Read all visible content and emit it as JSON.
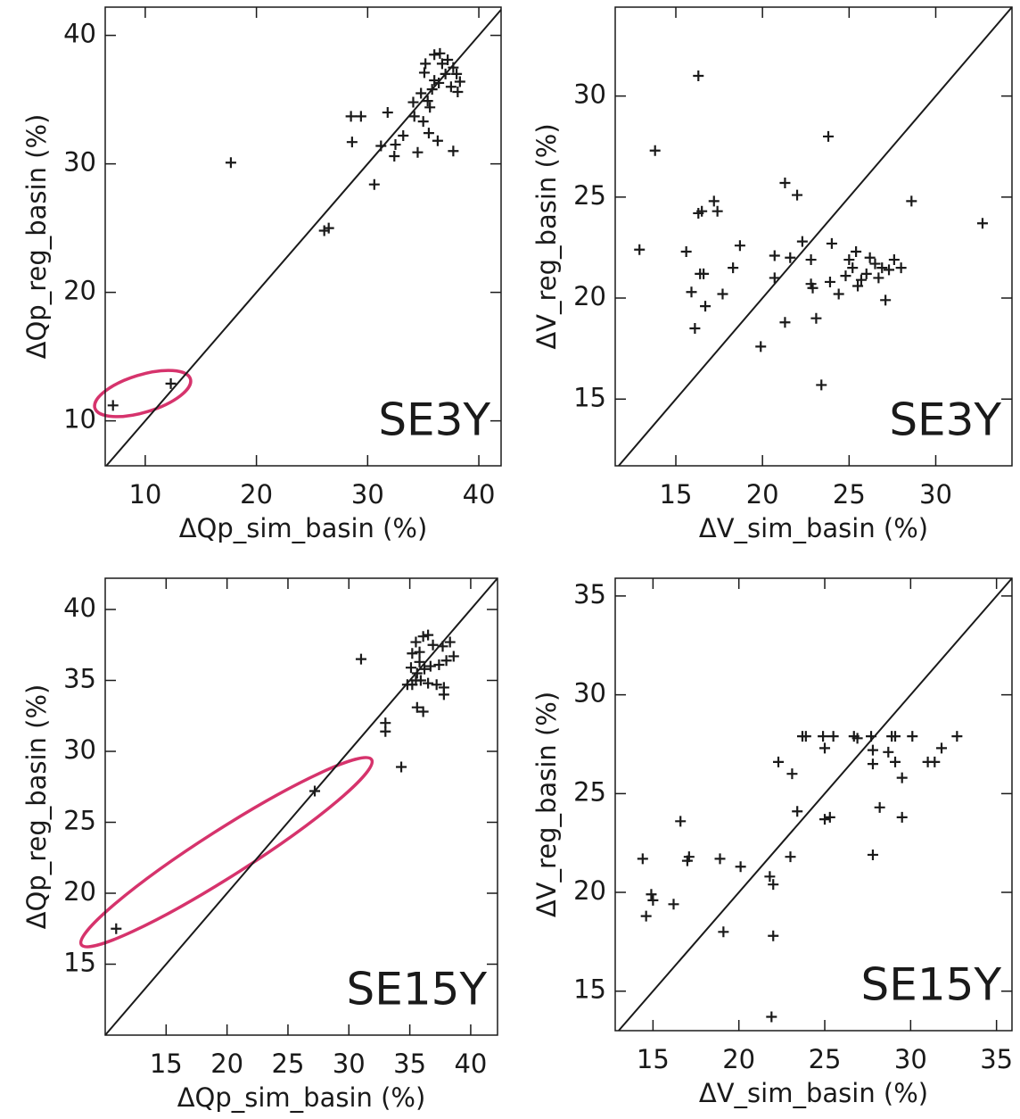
{
  "chart_data": [
    {
      "type": "scatter",
      "xlabel": "ΔQp_sim_basin (%)",
      "ylabel": "ΔQp_reg_basin (%)",
      "annotation": "SE3Y",
      "color": "#1a1a1a",
      "identity_line": true,
      "xlim": [
        6.4,
        42
      ],
      "ylim": [
        6.5,
        42.2
      ],
      "xticks": [
        10,
        20,
        30,
        40
      ],
      "yticks": [
        10,
        20,
        30,
        40
      ],
      "x": [
        7.1,
        12.3,
        17.7,
        26.1,
        26.5,
        28.5,
        29.4,
        28.6,
        30.6,
        31.2,
        31.8,
        32.5,
        32.4,
        33.2,
        34.1,
        34.2,
        34.5,
        34.8,
        35.0,
        35.1,
        35.2,
        35.4,
        35.5,
        35.6,
        35.8,
        36.0,
        36.0,
        36.3,
        36.4,
        36.5,
        36.7,
        37.0,
        37.2,
        37.5,
        37.7,
        37.7,
        38.0,
        38.1,
        38.3
      ],
      "y": [
        11.2,
        12.9,
        30.1,
        24.8,
        25.0,
        33.7,
        33.7,
        31.7,
        28.4,
        31.4,
        34.0,
        31.5,
        30.6,
        32.2,
        34.8,
        33.7,
        30.9,
        35.5,
        33.3,
        37.1,
        37.8,
        34.9,
        32.4,
        34.4,
        35.8,
        36.5,
        38.5,
        31.8,
        36.3,
        38.6,
        37.8,
        37.0,
        38.1,
        36.0,
        31.0,
        37.5,
        37.0,
        35.6,
        36.4
      ]
    },
    {
      "type": "scatter",
      "xlabel": "ΔV_sim_basin (%)",
      "ylabel": "ΔV_reg_basin (%)",
      "annotation": "SE3Y",
      "color": "#1a1a1a",
      "identity_line": true,
      "xlim": [
        11.5,
        34.4
      ],
      "ylim": [
        11.7,
        34.4
      ],
      "xticks": [
        15,
        20,
        25,
        30
      ],
      "yticks": [
        15,
        20,
        25,
        30
      ],
      "x": [
        12.9,
        13.8,
        15.6,
        15.9,
        16.1,
        16.3,
        16.3,
        16.5,
        16.4,
        16.6,
        16.7,
        17.2,
        17.4,
        17.7,
        18.3,
        18.7,
        19.9,
        20.7,
        20.7,
        21.3,
        21.3,
        21.6,
        22.0,
        22.3,
        22.8,
        22.8,
        22.9,
        23.1,
        23.4,
        23.8,
        23.9,
        24.0,
        24.4,
        24.8,
        25.0,
        25.2,
        25.4,
        25.5,
        25.7,
        26.0,
        26.2,
        26.5,
        26.7,
        26.9,
        27.1,
        27.3,
        27.6,
        28.0,
        28.6,
        32.7
      ],
      "y": [
        22.4,
        27.3,
        22.3,
        20.3,
        18.5,
        31.0,
        24.2,
        24.3,
        21.2,
        21.2,
        19.6,
        24.8,
        24.3,
        20.2,
        21.5,
        22.6,
        17.6,
        21.0,
        22.1,
        25.7,
        18.8,
        22.0,
        25.1,
        22.8,
        21.9,
        20.7,
        20.5,
        19.0,
        15.7,
        28.0,
        20.8,
        22.7,
        20.2,
        21.1,
        21.9,
        21.5,
        22.3,
        20.6,
        20.9,
        21.2,
        22.0,
        21.7,
        21.0,
        21.5,
        19.9,
        21.4,
        21.9,
        21.5,
        24.8,
        23.7
      ]
    },
    {
      "type": "scatter",
      "xlabel": "ΔQp_sim_basin (%)",
      "ylabel": "ΔQp_reg_basin (%)",
      "annotation": "SE15Y",
      "color": "#1a1a1a",
      "identity_line": true,
      "xlim": [
        10,
        42.2
      ],
      "ylim": [
        10,
        42.2
      ],
      "xticks": [
        15,
        20,
        25,
        30,
        35,
        40
      ],
      "yticks": [
        15,
        20,
        25,
        30,
        35,
        40
      ],
      "x": [
        10.9,
        27.2,
        31.0,
        33.0,
        33.0,
        34.3,
        34.8,
        35.1,
        35.2,
        35.5,
        35.6,
        35.8,
        35.9,
        36.1,
        36.2,
        36.5,
        36.7,
        36.9,
        37.2,
        37.4,
        37.7,
        38.0,
        38.3,
        38.6,
        35.6,
        36.1,
        37.8,
        37.8,
        35.2,
        35.5,
        35.8,
        36.5
      ],
      "y": [
        17.5,
        27.2,
        36.5,
        32.0,
        31.4,
        28.9,
        34.7,
        35.9,
        36.9,
        37.7,
        35.5,
        37.0,
        35.0,
        38.1,
        35.8,
        38.2,
        36.0,
        37.5,
        34.7,
        36.1,
        37.4,
        36.4,
        37.7,
        36.7,
        33.1,
        32.8,
        34.5,
        34.0,
        34.7,
        35.0,
        36.3,
        34.8
      ]
    },
    {
      "type": "scatter",
      "xlabel": "ΔV_sim_basin (%)",
      "ylabel": "ΔV_reg_basin (%)",
      "annotation": "SE15Y",
      "color": "#1a1a1a",
      "identity_line": true,
      "xlim": [
        12.8,
        35.9
      ],
      "ylim": [
        13,
        35.9
      ],
      "xticks": [
        15,
        20,
        25,
        30,
        35
      ],
      "yticks": [
        15,
        20,
        25,
        30,
        35
      ],
      "x": [
        14.4,
        14.6,
        14.9,
        15.0,
        16.2,
        16.6,
        17.0,
        17.1,
        18.9,
        19.1,
        20.1,
        21.8,
        22.0,
        22.0,
        21.9,
        22.3,
        23.0,
        23.1,
        23.4,
        23.7,
        23.9,
        24.9,
        25.0,
        25.0,
        25.3,
        25.5,
        26.7,
        26.9,
        27.7,
        27.8,
        27.8,
        27.8,
        28.2,
        28.7,
        28.9,
        29.1,
        29.1,
        29.5,
        29.5,
        30.1,
        31.0,
        31.4,
        31.8,
        32.7
      ],
      "y": [
        21.7,
        18.8,
        19.9,
        19.6,
        19.4,
        23.6,
        21.6,
        21.8,
        21.7,
        18.0,
        21.3,
        20.8,
        20.4,
        17.8,
        13.7,
        26.6,
        21.8,
        26.0,
        24.1,
        27.9,
        27.9,
        27.9,
        27.3,
        23.7,
        23.8,
        27.9,
        27.9,
        27.8,
        27.9,
        27.2,
        26.5,
        21.9,
        24.3,
        27.1,
        27.9,
        27.9,
        26.6,
        25.8,
        23.8,
        27.9,
        26.6,
        26.6,
        27.3,
        27.9
      ]
    }
  ]
}
